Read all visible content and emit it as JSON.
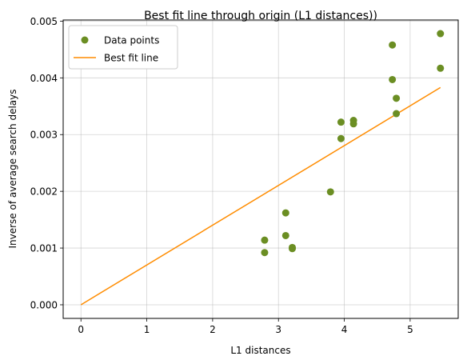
{
  "chart_data": {
    "type": "scatter",
    "title": "Best fit line through origin (L1 distances))",
    "xlabel": "L1 distances",
    "ylabel": "Inverse of average search delays",
    "xlim": [
      -0.27,
      5.73
    ],
    "ylim": [
      -0.00024,
      0.00502
    ],
    "xticks": [
      0,
      1,
      2,
      3,
      4,
      5
    ],
    "xtick_labels": [
      "0",
      "1",
      "2",
      "3",
      "4",
      "5"
    ],
    "yticks": [
      0.0,
      0.001,
      0.002,
      0.003,
      0.004,
      0.005
    ],
    "ytick_labels": [
      "0.000",
      "0.001",
      "0.002",
      "0.003",
      "0.004",
      "0.005"
    ],
    "grid": true,
    "legend_position": "upper-left",
    "series": [
      {
        "name": "Data points",
        "kind": "scatter",
        "color": "#6b8e23",
        "points": [
          [
            2.79,
            0.00114
          ],
          [
            2.79,
            0.00092
          ],
          [
            3.11,
            0.00162
          ],
          [
            3.11,
            0.00122
          ],
          [
            3.21,
            0.00101
          ],
          [
            3.21,
            0.00099
          ],
          [
            3.79,
            0.00199
          ],
          [
            3.95,
            0.00322
          ],
          [
            3.95,
            0.00293
          ],
          [
            4.14,
            0.00325
          ],
          [
            4.14,
            0.00319
          ],
          [
            4.73,
            0.00458
          ],
          [
            4.73,
            0.00397
          ],
          [
            4.79,
            0.00364
          ],
          [
            4.79,
            0.00337
          ],
          [
            5.46,
            0.00478
          ],
          [
            5.46,
            0.00417
          ]
        ]
      },
      {
        "name": "Best fit line",
        "kind": "line",
        "color": "#ff8c00",
        "points": [
          [
            0,
            0
          ],
          [
            5.46,
            0.00383
          ]
        ]
      }
    ]
  }
}
